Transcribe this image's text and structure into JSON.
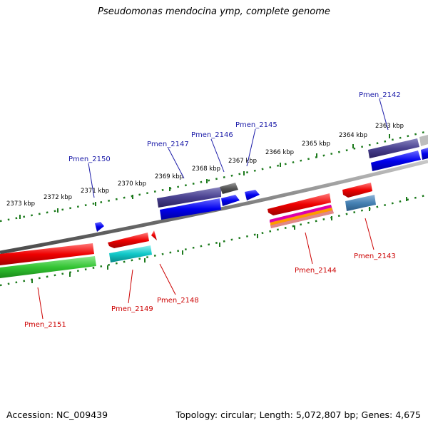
{
  "title": "Pseudomonas mendocina ymp, complete genome",
  "footer": {
    "accession": "Accession: NC_009439",
    "topology": "Topology: circular; Length: 5,072,807 bp; Genes: 4,675"
  },
  "scale_labels": [
    "2373 kbp",
    "2372 kbp",
    "2371 kbp",
    "2370 kbp",
    "2369 kbp",
    "2368 kbp",
    "2367 kbp",
    "2366 kbp",
    "2365 kbp",
    "2364 kbp",
    "2363 kbp"
  ],
  "genes_top": [
    "Pmen_2150",
    "Pmen_2147",
    "Pmen_2146",
    "Pmen_2145",
    "Pmen_2142"
  ],
  "genes_bottom": [
    "Pmen_2151",
    "Pmen_2149",
    "Pmen_2148",
    "Pmen_2144",
    "Pmen_2143"
  ],
  "colors": {
    "top_label": "#1a1aa8",
    "bottom_label": "#cc0000",
    "scale_dots": "#1c7a1c",
    "backbone": "#808080"
  }
}
